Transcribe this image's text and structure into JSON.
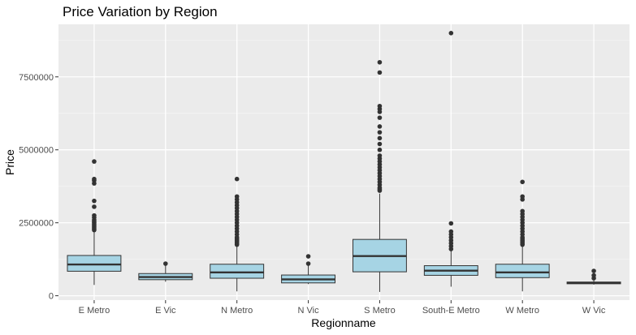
{
  "chart_data": {
    "type": "boxplot",
    "title": "Price Variation by Region",
    "xlabel": "Regionname",
    "ylabel": "Price",
    "ylim": [
      -150000,
      9300000
    ],
    "yticks": [
      0,
      2500000,
      5000000,
      7500000
    ],
    "ytick_labels": [
      "0",
      "2500000",
      "5000000",
      "7500000"
    ],
    "grid": true,
    "legend": "none",
    "colors": {
      "panel": "#ebebeb",
      "grid_major": "#ffffff",
      "box_fill": "#a6d4e4",
      "box_line": "#333333",
      "point": "#333333"
    },
    "categories": [
      "E Metro",
      "E Vic",
      "N Metro",
      "N Vic",
      "S Metro",
      "South-E Metro",
      "W Metro",
      "W Vic"
    ],
    "boxes": [
      {
        "whisker_low": 370000,
        "q1": 840000,
        "median": 1070000,
        "q3": 1380000,
        "whisker_high": 2180000,
        "outliers": [
          2250000,
          2300000,
          2350000,
          2400000,
          2450000,
          2500000,
          2550000,
          2600000,
          2680000,
          2750000,
          3050000,
          3250000,
          3850000,
          3950000,
          4000000,
          4600000
        ]
      },
      {
        "whisker_low": 480000,
        "q1": 550000,
        "median": 640000,
        "q3": 760000,
        "whisker_high": 1050000,
        "outliers": [
          1100000
        ]
      },
      {
        "whisker_low": 150000,
        "q1": 600000,
        "median": 800000,
        "q3": 1080000,
        "whisker_high": 1700000,
        "outliers": [
          1750000,
          1800000,
          1850000,
          1900000,
          1950000,
          2000000,
          2100000,
          2200000,
          2300000,
          2400000,
          2500000,
          2600000,
          2700000,
          2800000,
          2900000,
          3000000,
          3100000,
          3200000,
          3300000,
          3400000,
          4000000
        ]
      },
      {
        "whisker_low": 400000,
        "q1": 440000,
        "median": 560000,
        "q3": 710000,
        "whisker_high": 1050000,
        "outliers": [
          1100000,
          1350000
        ]
      },
      {
        "whisker_low": 131000,
        "q1": 820000,
        "median": 1360000,
        "q3": 1930000,
        "whisker_high": 3500000,
        "outliers": [
          3600000,
          3650000,
          3700000,
          3800000,
          3900000,
          4000000,
          4100000,
          4200000,
          4300000,
          4400000,
          4500000,
          4600000,
          4700000,
          4800000,
          5000000,
          5200000,
          5400000,
          5600000,
          5800000,
          6100000,
          6300000,
          6400000,
          6500000,
          7650000,
          8000000
        ]
      },
      {
        "whisker_low": 310000,
        "q1": 700000,
        "median": 860000,
        "q3": 1030000,
        "whisker_high": 1550000,
        "outliers": [
          1600000,
          1700000,
          1800000,
          1900000,
          2000000,
          2100000,
          2200000,
          2480000,
          9000000
        ]
      },
      {
        "whisker_low": 150000,
        "q1": 620000,
        "median": 800000,
        "q3": 1080000,
        "whisker_high": 1700000,
        "outliers": [
          1750000,
          1800000,
          1850000,
          1900000,
          1950000,
          2000000,
          2100000,
          2200000,
          2300000,
          2400000,
          2500000,
          2600000,
          2700000,
          2800000,
          2900000,
          3300000,
          3400000,
          3900000
        ]
      },
      {
        "whisker_low": 380000,
        "q1": 410000,
        "median": 440000,
        "q3": 470000,
        "whisker_high": 520000,
        "outliers": [
          600000,
          700000,
          850000
        ]
      }
    ]
  }
}
